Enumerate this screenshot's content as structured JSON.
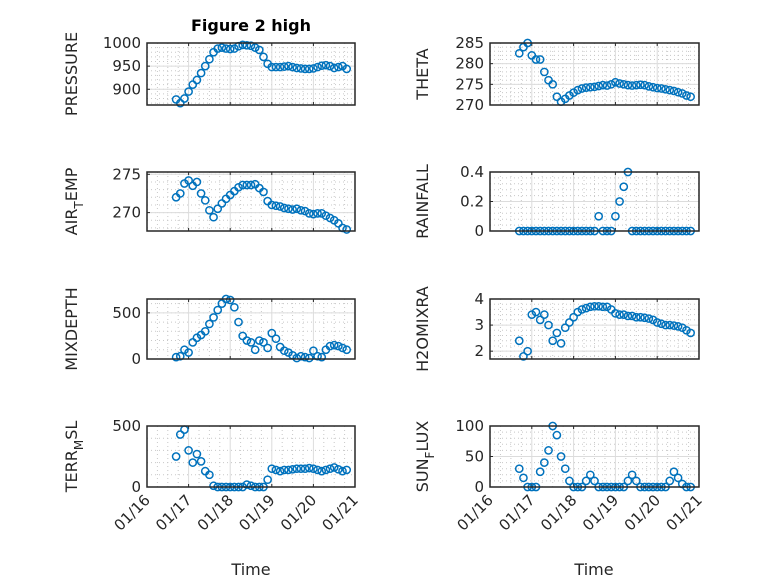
{
  "figure_title": "Figure 2 high",
  "xlabel": "Time",
  "chart_data": {
    "type": "scatter",
    "marker": "open-circle",
    "marker_color": "#0072BD",
    "grid": "major+minor",
    "x_units": "days since 01/16",
    "xlim": [
      0,
      5
    ],
    "xticks": [
      0,
      1,
      2,
      3,
      4,
      5
    ],
    "xticklabels": [
      "01/16",
      "01/17",
      "01/18",
      "01/19",
      "01/20",
      "01/21"
    ],
    "x": [
      0.7,
      0.8,
      0.9,
      1.0,
      1.1,
      1.2,
      1.3,
      1.4,
      1.5,
      1.6,
      1.7,
      1.8,
      1.9,
      2.0,
      2.1,
      2.2,
      2.3,
      2.4,
      2.5,
      2.6,
      2.7,
      2.8,
      2.9,
      3.0,
      3.1,
      3.2,
      3.3,
      3.4,
      3.5,
      3.6,
      3.7,
      3.8,
      3.9,
      4.0,
      4.1,
      4.2,
      4.3,
      4.4,
      4.5,
      4.6,
      4.7,
      4.8
    ],
    "panels": [
      {
        "ylabel": "PRESSURE",
        "ylim": [
          866,
          1000
        ],
        "yticks": [
          900,
          950,
          1000
        ],
        "yticklabels": [
          "900",
          "950",
          "1000"
        ],
        "values": [
          878,
          870,
          880,
          895,
          910,
          920,
          935,
          950,
          965,
          980,
          988,
          990,
          988,
          987,
          988,
          993,
          996,
          995,
          994,
          990,
          985,
          970,
          955,
          948,
          948,
          948,
          949,
          950,
          948,
          946,
          945,
          944,
          944,
          945,
          948,
          951,
          952,
          950,
          946,
          948,
          950,
          944
        ]
      },
      {
        "ylabel": "THETA",
        "ylim": [
          270,
          285
        ],
        "yticks": [
          270,
          275,
          280,
          285
        ],
        "yticklabels": [
          "270",
          "275",
          "280",
          "285"
        ],
        "values": [
          282.5,
          284,
          285,
          282,
          281,
          281,
          278,
          276,
          275,
          272,
          270.8,
          271.5,
          272.3,
          273,
          273.6,
          274,
          274.2,
          274.3,
          274.4,
          274.6,
          274.8,
          274.7,
          275,
          275.5,
          275.2,
          275,
          274.8,
          274.7,
          274.8,
          274.9,
          274.8,
          274.5,
          274.3,
          274.1,
          274,
          273.8,
          273.6,
          273.4,
          273.1,
          272.8,
          272.3,
          272
        ]
      },
      {
        "ylabel": "AIR_TEMP",
        "ylim": [
          267.6,
          275.3
        ],
        "yticks": [
          270,
          275
        ],
        "yticklabels": [
          "270",
          "275"
        ],
        "values": [
          272,
          272.5,
          273.8,
          274.2,
          273.5,
          274,
          272.5,
          271.6,
          270.3,
          269.4,
          270.5,
          271.2,
          271.8,
          272.3,
          272.8,
          273.3,
          273.6,
          273.6,
          273.6,
          273.7,
          273.2,
          272.7,
          271.5,
          271,
          270.9,
          270.8,
          270.6,
          270.5,
          270.4,
          270.5,
          270.3,
          270.2,
          269.9,
          269.8,
          269.9,
          269.9,
          269.6,
          269.3,
          269,
          268.6,
          268,
          267.8
        ]
      },
      {
        "ylabel": "RAINFALL",
        "ylim": [
          0,
          0.4
        ],
        "yticks": [
          0,
          0.2,
          0.4
        ],
        "yticklabels": [
          "0",
          "0.2",
          "0.4"
        ],
        "values": [
          0,
          0,
          0,
          0,
          0,
          0,
          0,
          0,
          0,
          0,
          0,
          0,
          0,
          0,
          0,
          0,
          0,
          0,
          0,
          0.1,
          0,
          0,
          0,
          0.1,
          0.2,
          0.3,
          0.4,
          0,
          0,
          0,
          0,
          0,
          0,
          0,
          0,
          0,
          0,
          0,
          0,
          0,
          0,
          0
        ]
      },
      {
        "ylabel": "MIXDEPTH",
        "ylim": [
          0,
          650
        ],
        "yticks": [
          0,
          500
        ],
        "yticklabels": [
          "0",
          "500"
        ],
        "values": [
          20,
          30,
          100,
          70,
          180,
          230,
          260,
          300,
          380,
          450,
          530,
          600,
          650,
          640,
          560,
          400,
          250,
          200,
          180,
          100,
          200,
          180,
          120,
          280,
          220,
          130,
          90,
          70,
          40,
          10,
          30,
          20,
          10,
          90,
          30,
          20,
          100,
          140,
          150,
          140,
          120,
          100
        ]
      },
      {
        "ylabel": "H2OMIXRA",
        "ylim": [
          1.7,
          4
        ],
        "yticks": [
          2,
          3,
          4
        ],
        "yticklabels": [
          "2",
          "3",
          "4"
        ],
        "values": [
          2.4,
          1.8,
          2.0,
          3.4,
          3.5,
          3.2,
          3.4,
          3.0,
          2.4,
          2.7,
          2.3,
          2.9,
          3.1,
          3.3,
          3.5,
          3.6,
          3.65,
          3.7,
          3.72,
          3.72,
          3.7,
          3.7,
          3.6,
          3.45,
          3.4,
          3.4,
          3.35,
          3.35,
          3.3,
          3.3,
          3.28,
          3.25,
          3.2,
          3.1,
          3.05,
          3.0,
          3.0,
          2.98,
          2.95,
          2.9,
          2.8,
          2.7
        ]
      },
      {
        "ylabel": "TERR_MSL",
        "ylim": [
          0,
          500
        ],
        "yticks": [
          0,
          500
        ],
        "yticklabels": [
          "0",
          "500"
        ],
        "values": [
          250,
          430,
          470,
          300,
          200,
          270,
          210,
          130,
          100,
          10,
          0,
          0,
          0,
          0,
          0,
          0,
          0,
          20,
          10,
          0,
          0,
          0,
          60,
          150,
          140,
          130,
          140,
          140,
          145,
          150,
          150,
          150,
          155,
          150,
          140,
          130,
          140,
          150,
          160,
          145,
          130,
          140
        ]
      },
      {
        "ylabel": "SUN_FLUX",
        "ylim": [
          0,
          100
        ],
        "yticks": [
          0,
          50,
          100
        ],
        "yticklabels": [
          "0",
          "50",
          "100"
        ],
        "values": [
          30,
          15,
          0,
          0,
          0,
          25,
          40,
          60,
          100,
          85,
          50,
          30,
          10,
          0,
          0,
          0,
          10,
          20,
          10,
          0,
          0,
          0,
          0,
          0,
          0,
          0,
          10,
          20,
          10,
          0,
          0,
          0,
          0,
          0,
          0,
          0,
          10,
          25,
          15,
          5,
          0,
          0
        ]
      }
    ]
  }
}
